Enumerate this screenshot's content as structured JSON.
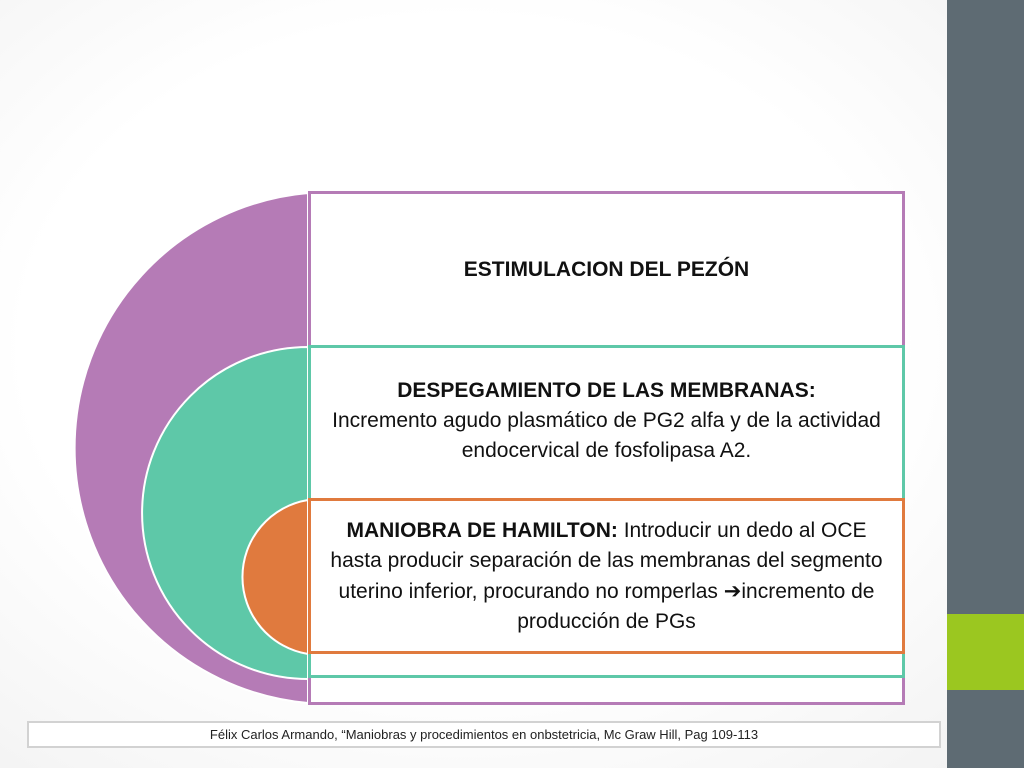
{
  "colors": {
    "outer": "#b57bb6",
    "middle": "#5ec8a8",
    "inner": "#e07a3e",
    "sidebar": "#5e6b73",
    "accent": "#9bc720"
  },
  "outer": {
    "title": "ESTIMULACION DEL PEZÓN"
  },
  "middle": {
    "heading": "DESPEGAMIENTO DE LAS MEMBRANAS:",
    "body": "Incremento agudo plasmático de PG2 alfa y de la actividad endocervical de fosfolipasa A2."
  },
  "inner": {
    "heading": "MANIOBRA DE HAMILTON:",
    "body_before": "Introducir un dedo al OCE hasta producir separación de las membranas del segmento uterino inferior, procurando no romperlas",
    "arrow": "➔",
    "body_after": "incremento de producción de PGs"
  },
  "citation": "Félix Carlos Armando, “Maniobras y procedimientos en onbstetricia, Mc Graw Hill, Pag 109-113"
}
